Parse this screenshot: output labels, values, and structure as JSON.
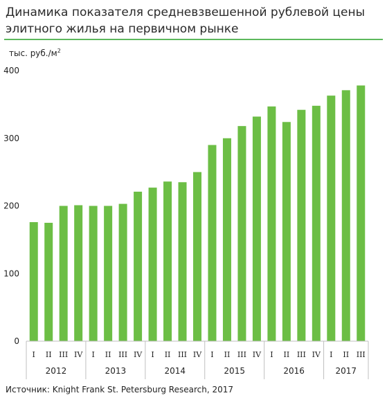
{
  "title": "Динамика показателя средневзвешенной рублевой цены элитного жилья на первичном рынке",
  "unit_label": "тыс. руб./м",
  "unit_sup": "2",
  "source": "Источник: Knight Frank St. Petersburg Research, 2017",
  "colors": {
    "bar": "#6cbe45",
    "rule": "#5cb85c",
    "axis": "#bfbfbf"
  },
  "chart_data": {
    "type": "bar",
    "ylim": [
      0,
      400
    ],
    "yticks": [
      0,
      100,
      200,
      300,
      400
    ],
    "grid": false,
    "categories": [
      "I",
      "II",
      "III",
      "IV",
      "I",
      "II",
      "III",
      "IV",
      "I",
      "II",
      "III",
      "IV",
      "I",
      "II",
      "III",
      "IV",
      "I",
      "II",
      "III",
      "IV",
      "I",
      "II",
      "III"
    ],
    "groups": [
      {
        "label": "2012",
        "size": 4
      },
      {
        "label": "2013",
        "size": 4
      },
      {
        "label": "2014",
        "size": 4
      },
      {
        "label": "2015",
        "size": 4
      },
      {
        "label": "2016",
        "size": 4
      },
      {
        "label": "2017",
        "size": 3
      }
    ],
    "values": [
      176,
      175,
      200,
      201,
      200,
      200,
      203,
      221,
      227,
      236,
      235,
      250,
      290,
      300,
      318,
      332,
      347,
      324,
      342,
      348,
      363,
      371,
      378
    ]
  }
}
